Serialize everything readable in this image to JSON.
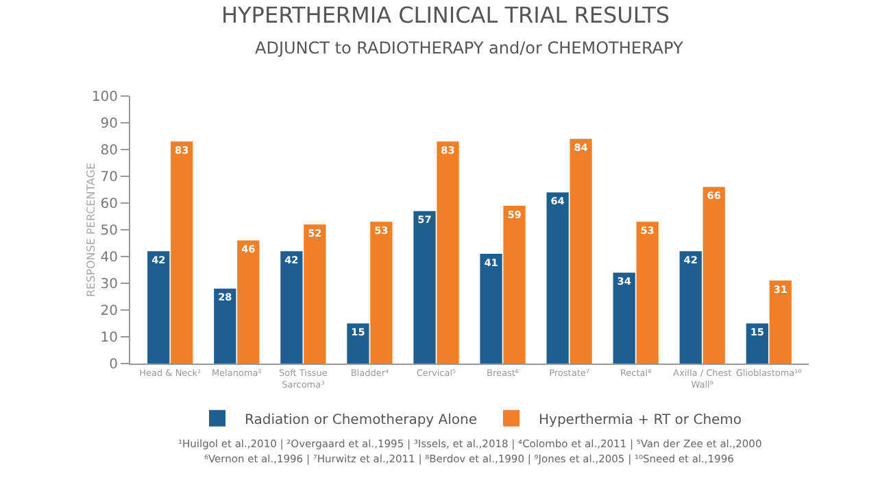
{
  "chart_data": {
    "type": "bar",
    "title": "HYPERTHERMIA CLINICAL TRIAL RESULTS",
    "subtitle": "ADJUNCT to RADIOTHERAPY and/or CHEMOTHERAPY",
    "ylabel": "RESPONSE PERCENTAGE",
    "categories": [
      "Head & Neck¹",
      "Melanoma²",
      "Soft Tissue Sarcoma³",
      "Bladder⁴",
      "Cervical⁵",
      "Breast⁶",
      "Prostate⁷",
      "Rectal⁸",
      "Axilla / Chest Wall⁹",
      "Glioblastoma¹⁰"
    ],
    "series": [
      {
        "name": "Radiation or Chemotherapy Alone",
        "color": "#1f5f8f",
        "values": [
          42,
          28,
          42,
          15,
          57,
          41,
          64,
          34,
          42,
          15
        ]
      },
      {
        "name": "Hyperthermia + RT or Chemo",
        "color": "#f07f2a",
        "values": [
          83,
          46,
          52,
          53,
          83,
          59,
          84,
          53,
          66,
          31
        ]
      }
    ],
    "ylim": [
      0,
      100
    ],
    "yticks": [
      0,
      10,
      20,
      30,
      40,
      50,
      60,
      70,
      80,
      90,
      100
    ],
    "grid": false,
    "legend": "bottom",
    "data_labels": true,
    "annotations": [
      "¹Huilgol et al.,2010 | ²Overgaard et al.,1995 | ³Issels, et al.,2018 | ⁴Colombo et al.,2011 | ⁵Van der Zee et al.,2000",
      "⁶Vernon et al.,1996 | ⁷Hurwitz et al.,2011 | ⁸Berdov et al.,1990 | ⁹Jones et al.,2005 | ¹⁰Sneed et al.,1996"
    ]
  }
}
